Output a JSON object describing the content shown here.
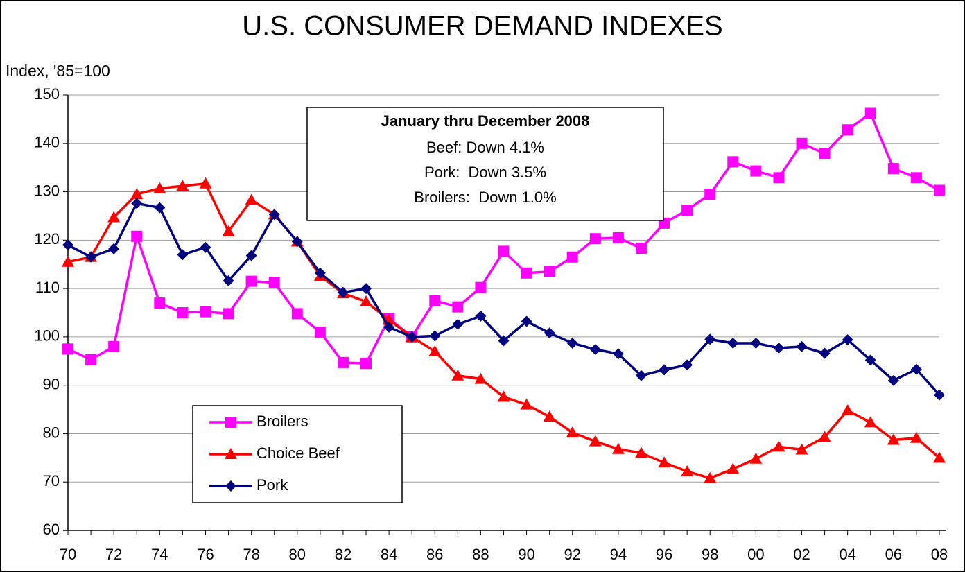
{
  "chart_data": {
    "type": "line",
    "title": "U.S. CONSUMER DEMAND INDEXES",
    "y_label": "Index, '85=100",
    "annotation": {
      "title": "January thru December 2008",
      "lines": [
        "Beef: Down 4.1%",
        "Pork:  Down 3.5%",
        "Broilers:  Down 1.0%"
      ]
    },
    "categories": [
      "70",
      null,
      "72",
      null,
      "74",
      null,
      "76",
      null,
      "78",
      null,
      "80",
      null,
      "82",
      null,
      "84",
      null,
      "86",
      null,
      "88",
      null,
      "90",
      null,
      "92",
      null,
      "94",
      null,
      "96",
      null,
      "98",
      null,
      "00",
      null,
      "02",
      null,
      "04",
      null,
      "06",
      null,
      "08"
    ],
    "series": [
      {
        "name": "Broilers",
        "color": "#ff00ff",
        "marker": "square",
        "values": [
          97.5,
          95.3,
          98,
          120.8,
          107,
          105,
          105.2,
          104.8,
          111.5,
          111.2,
          104.8,
          101,
          94.7,
          94.5,
          103.8,
          100,
          107.5,
          106.2,
          110.2,
          117.7,
          113.2,
          113.5,
          116.5,
          120.3,
          120.5,
          118.3,
          123.5,
          126.2,
          129.5,
          136.2,
          134.3,
          132.9,
          140,
          137.9,
          142.8,
          146.2,
          134.8,
          132.9,
          130.3
        ]
      },
      {
        "name": "Choice Beef",
        "color": "#ff0000",
        "marker": "triangle",
        "values": [
          115.5,
          116.5,
          124.7,
          129.5,
          130.7,
          131.2,
          131.7,
          121.8,
          128.3,
          125.3,
          119.7,
          112.6,
          109,
          107.3,
          103.5,
          100,
          97,
          92,
          91.3,
          87.6,
          86,
          83.5,
          80.2,
          78.4,
          76.8,
          76,
          74,
          72.2,
          70.8,
          72.7,
          74.8,
          77.3,
          76.7,
          79.3,
          84.8,
          82.3,
          78.7,
          79.1,
          75
        ]
      },
      {
        "name": "Pork",
        "color": "#000080",
        "marker": "diamond",
        "values": [
          119,
          116.5,
          118.2,
          127.6,
          126.7,
          117,
          118.5,
          111.6,
          116.8,
          125.3,
          119.7,
          113.2,
          109.2,
          110,
          102,
          100,
          100.2,
          102.6,
          104.3,
          99.2,
          103.2,
          100.8,
          98.7,
          97.4,
          96.5,
          92,
          93.2,
          94.2,
          99.5,
          98.7,
          98.7,
          97.7,
          98,
          96.6,
          99.4,
          95.2,
          91,
          93.3,
          88
        ]
      }
    ],
    "ylim": [
      60,
      150
    ],
    "yticks": [
      60,
      70,
      80,
      90,
      100,
      110,
      120,
      130,
      140,
      150
    ],
    "grid": true,
    "legend": "lower left"
  }
}
